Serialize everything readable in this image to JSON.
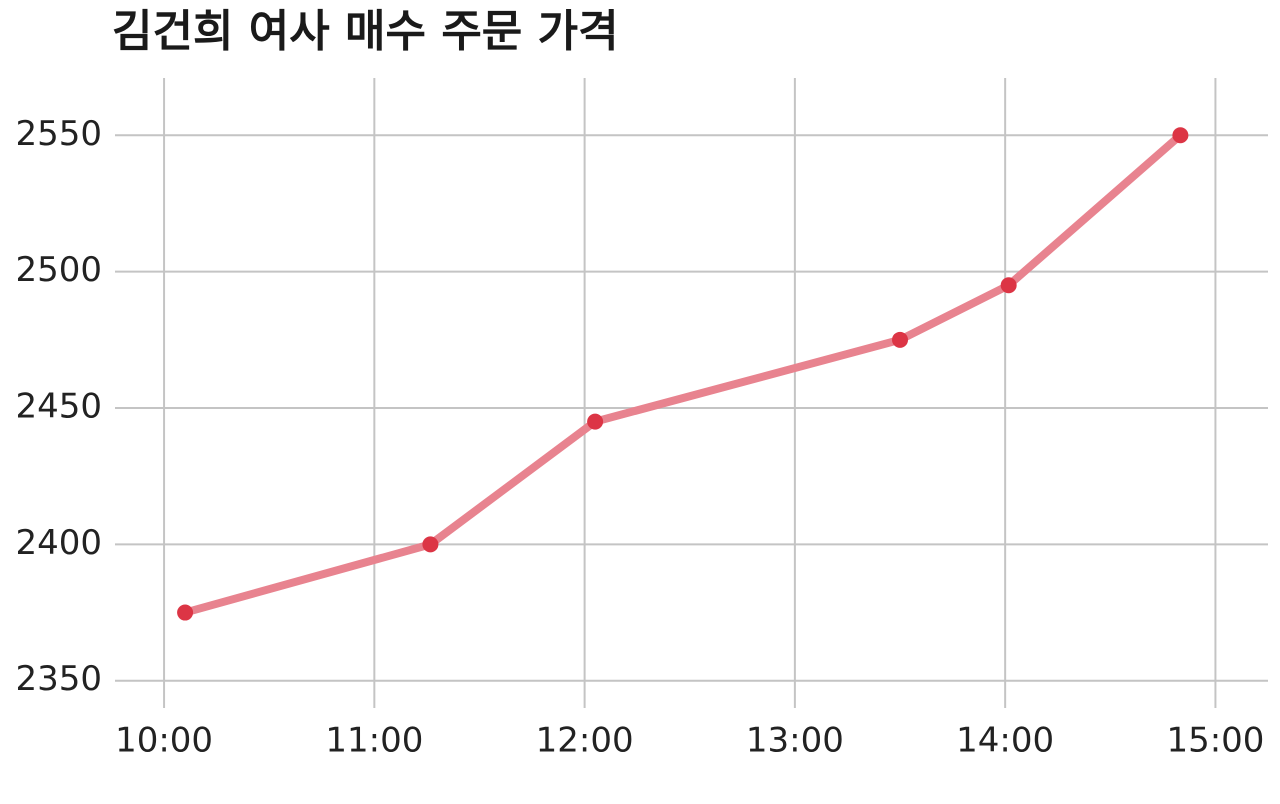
{
  "chart_data": {
    "type": "line",
    "title": "김건희 여사 매수 주문 가격",
    "x": [
      "10:06",
      "11:16",
      "12:03",
      "13:30",
      "14:01",
      "14:50"
    ],
    "series": [
      {
        "color": "#e8838f",
        "marker_color": "#dc3545",
        "values": [
          2375,
          2400,
          2445,
          2475,
          2495,
          2550
        ]
      }
    ],
    "xlim": [
      "09:46",
      "15:15"
    ],
    "xticks": [
      "10:00",
      "11:00",
      "12:00",
      "13:00",
      "14:00",
      "15:00"
    ],
    "ylim": [
      2340,
      2571
    ],
    "yticks": [
      2350,
      2400,
      2450,
      2500,
      2550
    ],
    "grid": true
  }
}
